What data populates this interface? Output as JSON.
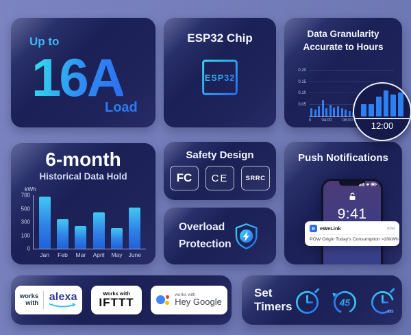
{
  "colors": {
    "page_bg_top": "#7b84c1",
    "page_bg_bottom": "#6973ad",
    "card_dark": "#1b2156",
    "card_mid": "#272c68",
    "accent_cyan": "#3ac8f5",
    "accent_blue": "#2e7bf1",
    "bar_blue": "#2e7ff0",
    "alexa_blue": "#2c3e93",
    "alexa_smile": "#35c3f2",
    "google_blue": "#4285f4",
    "google_red": "#ea4335",
    "google_yellow": "#fbbc05",
    "ifttt_black": "#111111"
  },
  "cards": {
    "load": {
      "prefix": "Up to",
      "value": "16A",
      "suffix": "Load"
    },
    "chip": {
      "title": "ESP32 Chip",
      "chip_label": "ESP32"
    },
    "granularity": {
      "title_line1": "Data Granularity",
      "title_line2": "Accurate to Hours"
    },
    "history": {
      "title": "6-month",
      "subtitle": "Historical Data Hold"
    },
    "safety": {
      "title": "Safety Design",
      "badges": [
        "FC",
        "CE",
        "SRRC"
      ]
    },
    "overload": {
      "line1": "Overload",
      "line2": "Protection"
    },
    "push": {
      "title": "Push Notifications",
      "time": "9:41",
      "date": "Thursday, May 23",
      "notification": {
        "app": "eWeLink",
        "app_initial": "e",
        "when": "now",
        "message": "POW Origin Today's Consumption >20kWh"
      }
    },
    "works_with": {
      "alexa": {
        "prefix_line1": "works",
        "prefix_line2": "with",
        "brand": "alexa"
      },
      "ifttt": {
        "prefix": "Works with",
        "brand": "IFTTT"
      },
      "google": {
        "prefix": "works with",
        "brand": "Hey Google"
      }
    },
    "timers": {
      "title": "Set Timers",
      "countdown_value": "45",
      "infinity": "∞"
    }
  },
  "chart_data": [
    {
      "type": "bar",
      "title": "Data Granularity Accurate to Hours",
      "xlabel": "",
      "ylabel": "",
      "x_tick_labels": [
        "0",
        "04:00",
        "08:00",
        "12:00",
        "16:00"
      ],
      "y_ticks": [
        0.05,
        0.1,
        0.15,
        0.2
      ],
      "y_tick_labels": [
        "0.05",
        "0.10",
        "0.15",
        "0.20"
      ],
      "ylim": [
        0,
        0.22
      ],
      "values": [
        0.035,
        0.03,
        0.045,
        0.07,
        0.035,
        0.05,
        0.04,
        0.045,
        0.035,
        0.03,
        0.025,
        0.02,
        0.015,
        0.015,
        0.02,
        0.045,
        0.12,
        0.07,
        0.08,
        0.055,
        0.05,
        0.09
      ],
      "magnified_values": [
        0.06,
        0.06,
        0.1,
        0.13,
        0.11,
        0.12
      ],
      "magnifier_label": "12:00",
      "grid": true,
      "legend": false
    },
    {
      "type": "bar",
      "title": "6-month Historical Data Hold",
      "xlabel": "",
      "ylabel": "kWh",
      "categories": [
        "Jan",
        "Feb",
        "Mar",
        "April",
        "May",
        "June"
      ],
      "values": [
        680,
        340,
        240,
        440,
        210,
        520
      ],
      "y_ticks": [
        0,
        100,
        300,
        500,
        700
      ],
      "y_tick_labels": [
        "0",
        "100",
        "300",
        "500",
        "700"
      ],
      "grid": false,
      "legend": false
    }
  ]
}
